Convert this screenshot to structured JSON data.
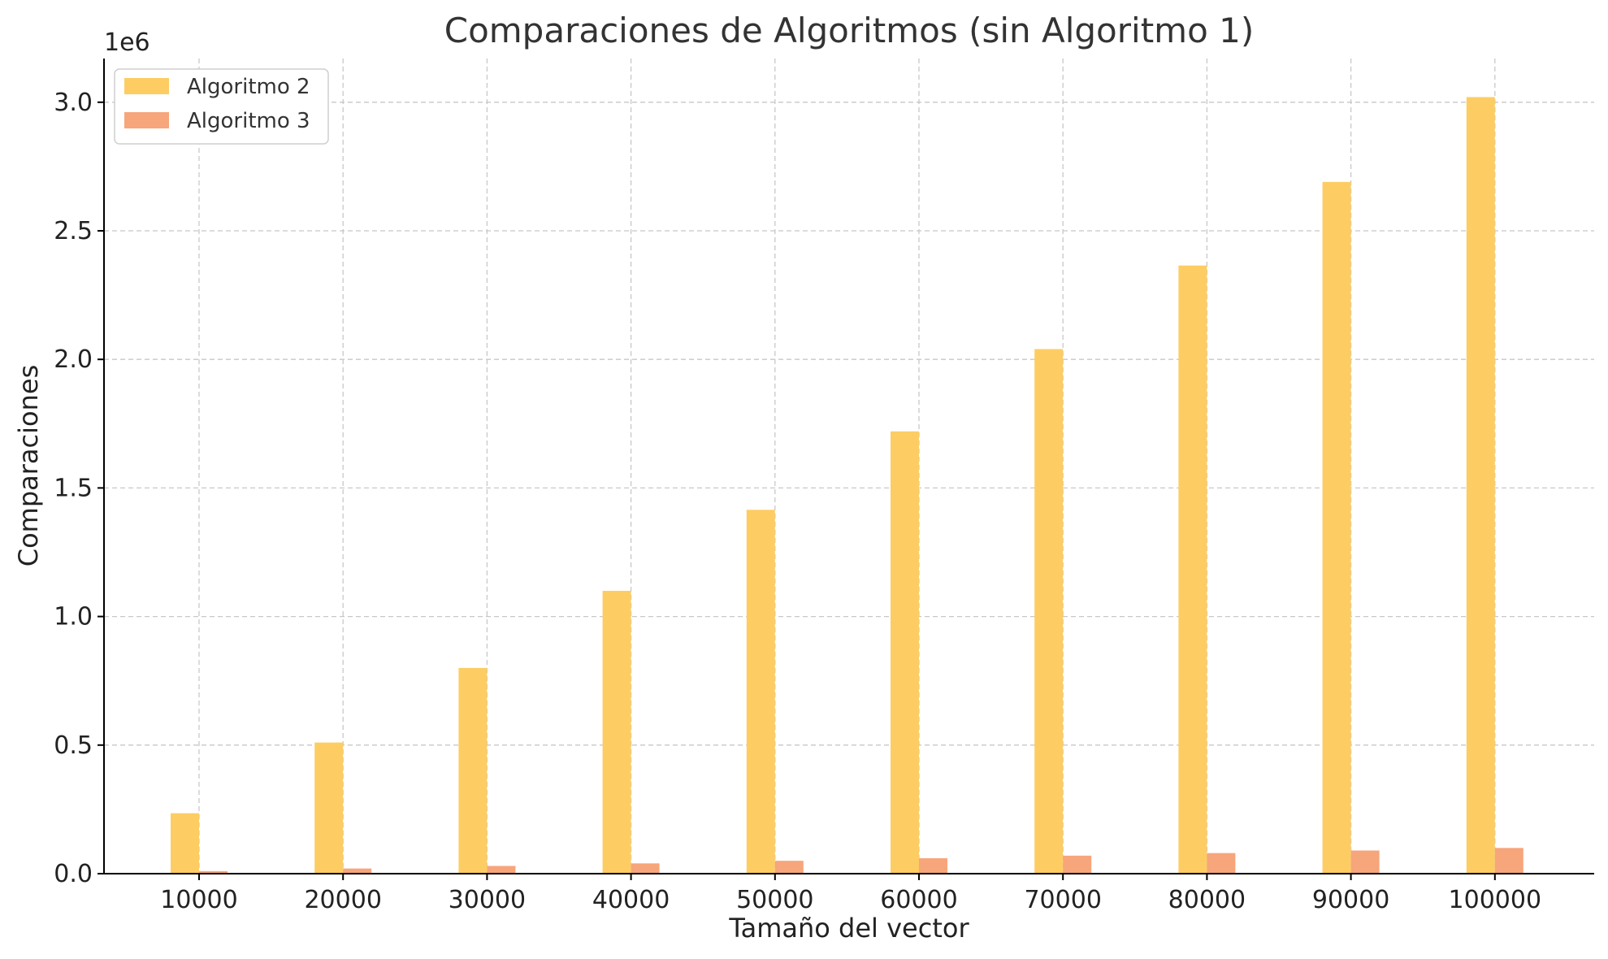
{
  "chart_data": {
    "type": "bar",
    "title": "Comparaciones de Algoritmos (sin Algoritmo 1)",
    "xlabel": "Tamaño del vector",
    "ylabel": "Comparaciones",
    "y_offset_label": "1e6",
    "categories": [
      "10000",
      "20000",
      "30000",
      "40000",
      "50000",
      "60000",
      "70000",
      "80000",
      "90000",
      "100000"
    ],
    "ylim": [
      0,
      3170000
    ],
    "yticks": [
      0,
      500000,
      1000000,
      1500000,
      2000000,
      2500000,
      3000000
    ],
    "ytick_labels": [
      "0.0",
      "0.5",
      "1.0",
      "1.5",
      "2.0",
      "2.5",
      "3.0"
    ],
    "grid": true,
    "legend_position": "top-left",
    "series": [
      {
        "name": "Algoritmo 2",
        "color": "#fdcd63",
        "values": [
          235000,
          510000,
          800000,
          1100000,
          1415000,
          1720000,
          2040000,
          2365000,
          2690000,
          3020000
        ]
      },
      {
        "name": "Algoritmo 3",
        "color": "#f7a57b",
        "values": [
          10000,
          20000,
          30000,
          40000,
          50000,
          60000,
          70000,
          80000,
          90000,
          100000
        ]
      }
    ]
  }
}
